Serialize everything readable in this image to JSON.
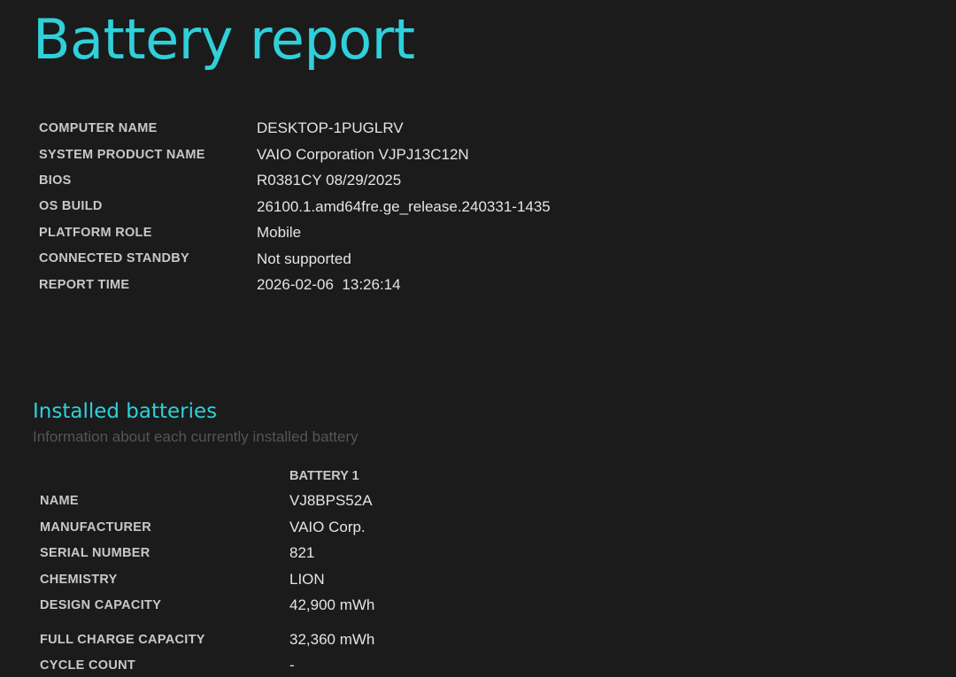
{
  "title": "Battery report",
  "system_info": [
    {
      "label": "COMPUTER NAME",
      "value": "DESKTOP-1PUGLRV"
    },
    {
      "label": "SYSTEM PRODUCT NAME",
      "value": "VAIO Corporation VJPJ13C12N"
    },
    {
      "label": "BIOS",
      "value": "R0381CY 08/29/2025"
    },
    {
      "label": "OS BUILD",
      "value": "26100.1.amd64fre.ge_release.240331-1435"
    },
    {
      "label": "PLATFORM ROLE",
      "value": "Mobile"
    },
    {
      "label": "CONNECTED STANDBY",
      "value": "Not supported"
    },
    {
      "label": "REPORT TIME",
      "value": "2026-02-06  13:26:14"
    }
  ],
  "installed_batteries": {
    "heading": "Installed batteries",
    "subtitle": "Information about each currently installed battery",
    "column_header": "BATTERY 1",
    "rows": [
      {
        "label": "NAME",
        "value": "VJ8BPS52A"
      },
      {
        "label": "MANUFACTURER",
        "value": "VAIO Corp."
      },
      {
        "label": "SERIAL NUMBER",
        "value": "821"
      },
      {
        "label": "CHEMISTRY",
        "value": "LION"
      },
      {
        "label": "DESIGN CAPACITY",
        "value": "42,900 mWh"
      },
      {
        "label": "FULL CHARGE CAPACITY",
        "value": "32,360 mWh"
      },
      {
        "label": "CYCLE COUNT",
        "value": "-"
      }
    ]
  }
}
